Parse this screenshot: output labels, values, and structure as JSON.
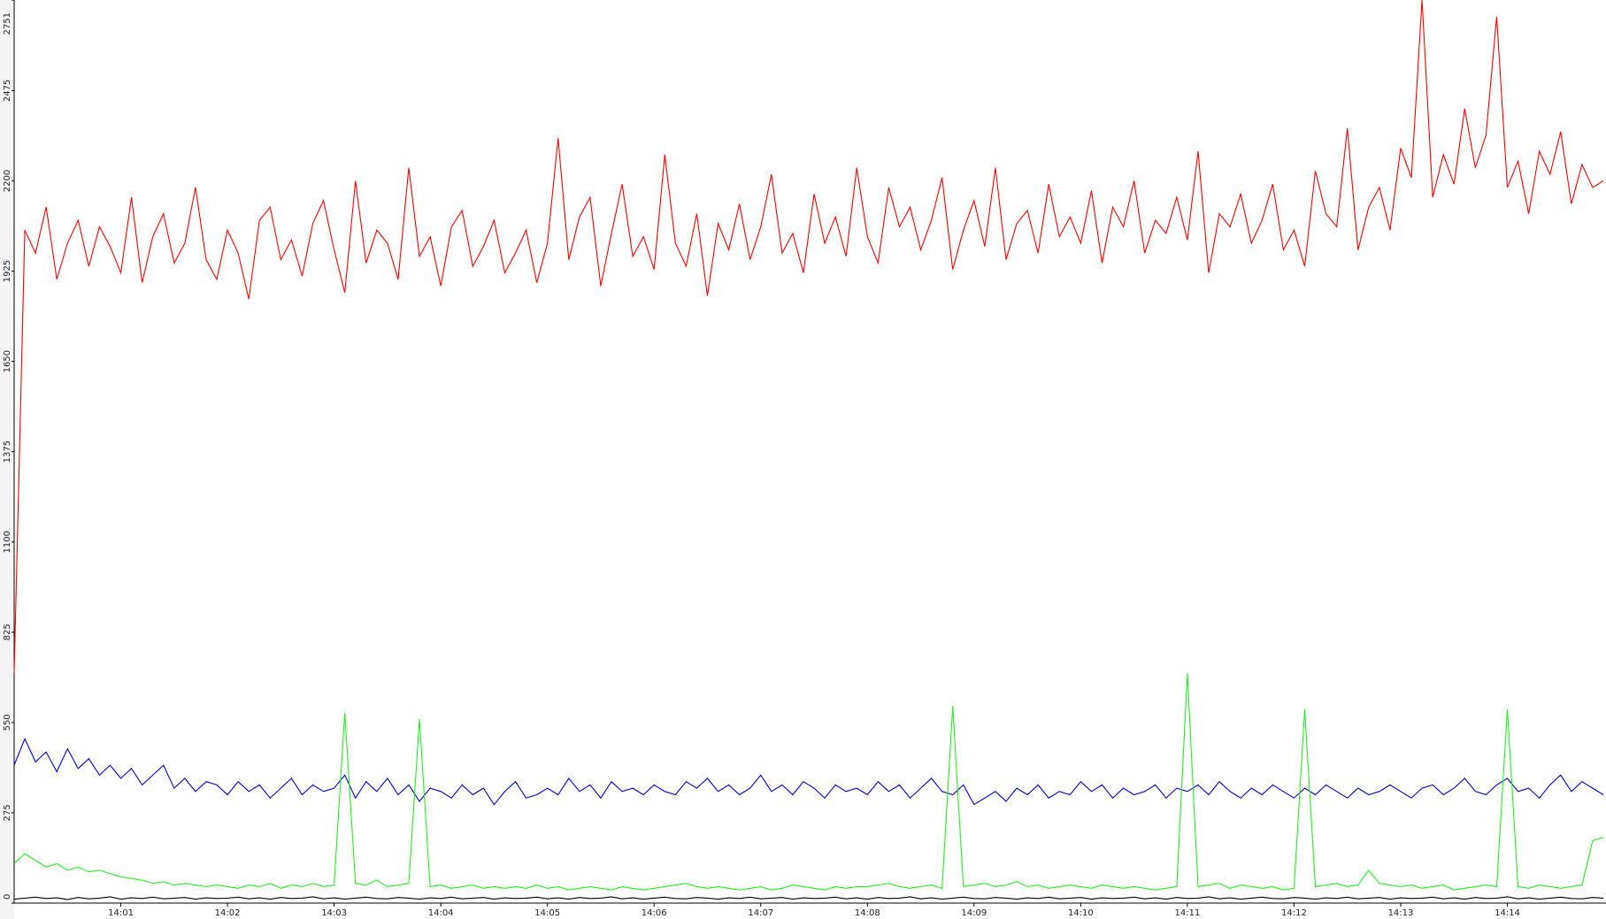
{
  "chart_data": {
    "type": "line",
    "categories": [
      null,
      null,
      null,
      null,
      null,
      null,
      null,
      null,
      null,
      null,
      "14:01",
      null,
      null,
      null,
      null,
      null,
      null,
      null,
      null,
      null,
      "14:02",
      null,
      null,
      null,
      null,
      null,
      null,
      null,
      null,
      null,
      "14:03",
      null,
      null,
      null,
      null,
      null,
      null,
      null,
      null,
      null,
      "14:04",
      null,
      null,
      null,
      null,
      null,
      null,
      null,
      null,
      null,
      "14:05",
      null,
      null,
      null,
      null,
      null,
      null,
      null,
      null,
      null,
      "14:06",
      null,
      null,
      null,
      null,
      null,
      null,
      null,
      null,
      null,
      "14:07",
      null,
      null,
      null,
      null,
      null,
      null,
      null,
      null,
      null,
      "14:08",
      null,
      null,
      null,
      null,
      null,
      null,
      null,
      null,
      null,
      "14:09",
      null,
      null,
      null,
      null,
      null,
      null,
      null,
      null,
      null,
      "14:10",
      null,
      null,
      null,
      null,
      null,
      null,
      null,
      null,
      null,
      "14:11",
      null,
      null,
      null,
      null,
      null,
      null,
      null,
      null,
      null,
      "14:12",
      null,
      null,
      null,
      null,
      null,
      null,
      null,
      null,
      null,
      "14:13",
      null,
      null,
      null,
      null,
      null,
      null,
      null,
      null,
      null,
      "14:14",
      null,
      null,
      null,
      null,
      null,
      null,
      null,
      null,
      null
    ],
    "series": [
      {
        "color": "#ff0000",
        "values": [
          700,
          2050,
          1980,
          2120,
          1900,
          2010,
          2080,
          1940,
          2060,
          2000,
          1920,
          2150,
          1890,
          2030,
          2100,
          1950,
          2010,
          2180,
          1960,
          1900,
          2050,
          1980,
          1840,
          2080,
          2120,
          1960,
          2020,
          1910,
          2070,
          2140,
          1990,
          1860,
          2200,
          1950,
          2050,
          2010,
          1900,
          2240,
          1970,
          2030,
          1880,
          2060,
          2110,
          1940,
          2000,
          2080,
          1920,
          1980,
          2050,
          1890,
          2010,
          2330,
          1960,
          2090,
          2150,
          1880,
          2040,
          2190,
          1970,
          2030,
          1930,
          2280,
          2010,
          1940,
          2100,
          1850,
          2070,
          1990,
          2130,
          1960,
          2060,
          2220,
          1980,
          2040,
          1920,
          2160,
          2010,
          2090,
          1970,
          2240,
          2030,
          1950,
          2180,
          2060,
          2120,
          1990,
          2080,
          2210,
          1930,
          2050,
          2140,
          2000,
          2240,
          1960,
          2070,
          2110,
          1980,
          2190,
          2030,
          2090,
          2010,
          2170,
          1950,
          2120,
          2060,
          2200,
          1980,
          2080,
          2040,
          2150,
          2020,
          2290,
          1920,
          2100,
          2060,
          2160,
          2010,
          2080,
          2190,
          1990,
          2050,
          1940,
          2230,
          2100,
          2060,
          2360,
          1990,
          2120,
          2180,
          2050,
          2300,
          2210,
          2751,
          2150,
          2280,
          2190,
          2420,
          2240,
          2340,
          2700,
          2180,
          2260,
          2100,
          2290,
          2220,
          2350,
          2130,
          2250,
          2180,
          2200
        ]
      },
      {
        "color": "#0000dd",
        "values": [
          420,
          500,
          430,
          460,
          400,
          470,
          410,
          440,
          390,
          420,
          380,
          410,
          360,
          390,
          420,
          350,
          380,
          340,
          370,
          360,
          330,
          370,
          340,
          360,
          320,
          350,
          380,
          330,
          360,
          340,
          350,
          390,
          320,
          370,
          340,
          380,
          330,
          360,
          310,
          350,
          340,
          320,
          360,
          330,
          350,
          300,
          340,
          370,
          320,
          330,
          350,
          330,
          380,
          340,
          360,
          320,
          370,
          340,
          350,
          330,
          360,
          340,
          330,
          370,
          350,
          380,
          340,
          360,
          330,
          350,
          390,
          340,
          360,
          330,
          370,
          350,
          320,
          360,
          340,
          350,
          330,
          370,
          340,
          360,
          320,
          350,
          380,
          340,
          330,
          360,
          300,
          320,
          340,
          310,
          350,
          330,
          360,
          320,
          340,
          330,
          370,
          340,
          360,
          320,
          350,
          330,
          340,
          360,
          320,
          350,
          340,
          360,
          330,
          370,
          340,
          320,
          350,
          330,
          360,
          340,
          320,
          350,
          330,
          360,
          340,
          320,
          350,
          330,
          340,
          360,
          340,
          320,
          350,
          360,
          330,
          350,
          380,
          340,
          330,
          360,
          380,
          340,
          350,
          320,
          360,
          390,
          340,
          370,
          350,
          330
        ]
      },
      {
        "color": "#22ee22",
        "values": [
          120,
          150,
          130,
          110,
          120,
          100,
          110,
          95,
          100,
          90,
          80,
          75,
          70,
          60,
          65,
          55,
          60,
          55,
          50,
          55,
          50,
          45,
          55,
          50,
          60,
          45,
          55,
          50,
          60,
          50,
          55,
          580,
          60,
          55,
          70,
          50,
          55,
          60,
          560,
          50,
          55,
          45,
          50,
          55,
          45,
          50,
          45,
          50,
          45,
          55,
          45,
          50,
          40,
          45,
          50,
          45,
          40,
          50,
          45,
          40,
          45,
          50,
          55,
          60,
          50,
          45,
          50,
          45,
          40,
          45,
          50,
          40,
          45,
          55,
          50,
          45,
          40,
          50,
          45,
          50,
          50,
          55,
          60,
          50,
          45,
          50,
          55,
          45,
          600,
          50,
          55,
          60,
          50,
          55,
          65,
          50,
          55,
          45,
          50,
          55,
          50,
          45,
          55,
          50,
          45,
          50,
          45,
          40,
          45,
          50,
          700,
          50,
          55,
          60,
          45,
          55,
          50,
          45,
          50,
          40,
          45,
          590,
          50,
          55,
          60,
          50,
          55,
          100,
          60,
          55,
          50,
          55,
          45,
          50,
          55,
          40,
          45,
          50,
          55,
          50,
          590,
          50,
          45,
          55,
          50,
          45,
          50,
          55,
          190,
          200
        ]
      },
      {
        "color": "#000000",
        "values": [
          12,
          15,
          18,
          14,
          16,
          11,
          17,
          13,
          15,
          19,
          12,
          16,
          14,
          18,
          13,
          15,
          17,
          12,
          16,
          14,
          15,
          18,
          13,
          16,
          12,
          17,
          14,
          15,
          19,
          13,
          16,
          12,
          15,
          18,
          14,
          13,
          17,
          15,
          12,
          16,
          14,
          18,
          13,
          15,
          17,
          12,
          16,
          14,
          15,
          18,
          13,
          16,
          12,
          17,
          14,
          15,
          19,
          13,
          16,
          12,
          15,
          18,
          14,
          13,
          17,
          15,
          12,
          16,
          14,
          18,
          13,
          15,
          17,
          12,
          16,
          14,
          15,
          18,
          13,
          16,
          12,
          17,
          14,
          15,
          19,
          13,
          16,
          12,
          15,
          18,
          14,
          13,
          17,
          15,
          12,
          16,
          14,
          18,
          13,
          15,
          17,
          12,
          16,
          14,
          15,
          18,
          13,
          16,
          12,
          17,
          14,
          15,
          19,
          13,
          16,
          12,
          15,
          18,
          14,
          13,
          17,
          15,
          12,
          16,
          14,
          18,
          13,
          15,
          17,
          12,
          16,
          14,
          15,
          18,
          13,
          16,
          12,
          17,
          14,
          15,
          19,
          13,
          16,
          12,
          15,
          18,
          14,
          13,
          17,
          15
        ]
      }
    ],
    "ylim": [
      0,
      2751
    ],
    "yticks": [
      0,
      275,
      550,
      825,
      1100,
      1375,
      1650,
      1925,
      2200,
      2475,
      2751
    ]
  }
}
